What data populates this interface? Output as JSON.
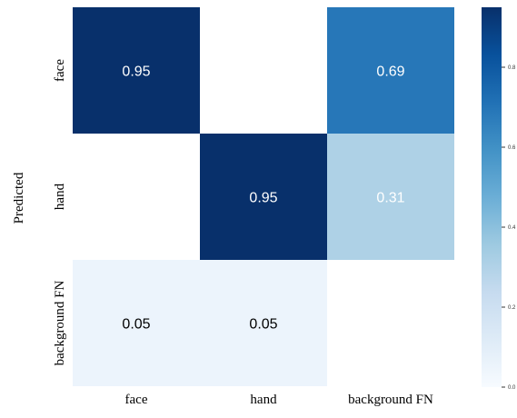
{
  "chart_data": {
    "type": "heatmap",
    "title": "",
    "xlabel": "",
    "ylabel": "Predicted",
    "x_categories": [
      "face",
      "hand",
      "background FN"
    ],
    "y_categories": [
      "face",
      "hand",
      "background FN"
    ],
    "values": [
      [
        0.95,
        null,
        0.69
      ],
      [
        null,
        0.95,
        0.31
      ],
      [
        0.05,
        0.05,
        null
      ]
    ],
    "cell_labels": [
      [
        "0.95",
        "",
        "0.69"
      ],
      [
        "",
        "0.95",
        "0.31"
      ],
      [
        "0.05",
        "0.05",
        ""
      ]
    ],
    "colormap": "Blues",
    "value_range": [
      0.0,
      0.95
    ],
    "colorbar": {
      "ticks": [
        0.0,
        0.2,
        0.4,
        0.6,
        0.8
      ],
      "tick_labels": [
        "0.0",
        "0.2",
        "0.4",
        "0.6",
        "0.8"
      ]
    },
    "colors": {
      "low": "#f7fbff",
      "high": "#08306b",
      "light_text": "#ffffff",
      "dark_text": "#000000"
    }
  }
}
